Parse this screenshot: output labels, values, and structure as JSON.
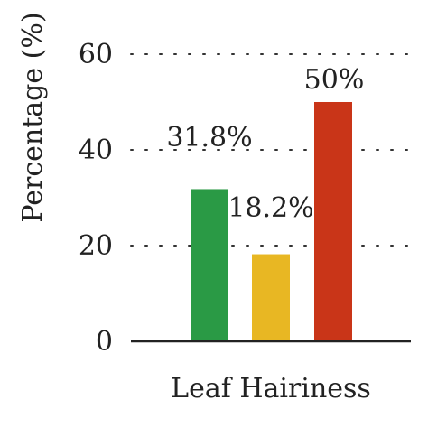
{
  "chart_data": {
    "type": "bar",
    "xlabel": "Leaf Hairiness",
    "ylabel": "Percentage (%)",
    "ylim": [
      0,
      60
    ],
    "yticks": [
      0,
      20,
      40,
      60
    ],
    "grid": "dotted horizontal",
    "categories": [
      "",
      "",
      ""
    ],
    "values": [
      31.8,
      18.2,
      50
    ],
    "data_labels": [
      "31.8%",
      "18.2%",
      "50%"
    ],
    "colors": [
      "#2a9a45",
      "#e8b723",
      "#c93518"
    ]
  }
}
